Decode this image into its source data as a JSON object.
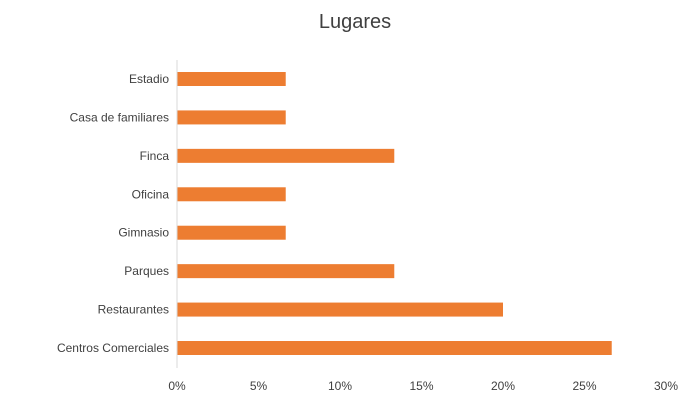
{
  "chart_data": {
    "type": "bar",
    "orientation": "horizontal",
    "title": "Lugares",
    "categories": [
      "Estadio",
      "Casa de familiares",
      "Finca",
      "Oficina",
      "Gimnasio",
      "Parques",
      "Restaurantes",
      "Centros Comerciales"
    ],
    "series": [
      {
        "values": [
          6.67,
          6.67,
          13.33,
          6.67,
          6.67,
          13.33,
          20.0,
          26.67
        ]
      }
    ],
    "xlim": [
      0,
      30
    ],
    "xticks": [
      "0%",
      "5%",
      "10%",
      "15%",
      "20%",
      "25%",
      "30%"
    ],
    "xtick_values": [
      0,
      5,
      10,
      15,
      20,
      25,
      30
    ],
    "grid": false,
    "legend": "none",
    "bar_color": "#ED7D31",
    "axis_color": "#D9D9D9"
  }
}
